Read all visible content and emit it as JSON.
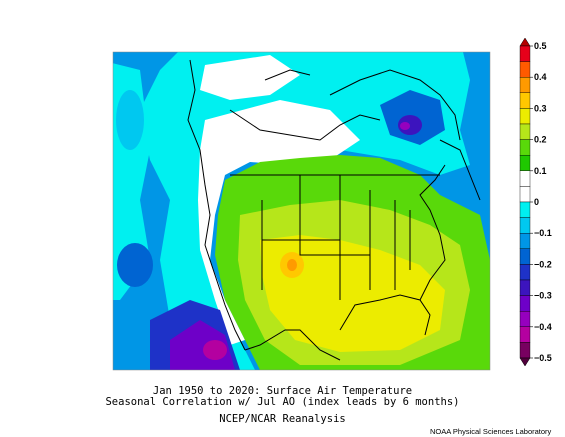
{
  "title_line1": "Jan 1950 to 2020: Surface Air Temperature",
  "title_line2": "Seasonal Correlation w/ Jul AO (index leads by 6 months)",
  "subtitle": "NCEP/NCAR Reanalysis",
  "credit": "NOAA Physical Sciences Laboratory",
  "colorbar": {
    "tick_labels": [
      "0.5",
      "0.4",
      "0.3",
      "0.2",
      "0.1",
      "0",
      "−0.1",
      "−0.2",
      "−0.3",
      "−0.4",
      "−0.5"
    ],
    "bins": [
      {
        "color": "#e6001a"
      },
      {
        "color": "#ff5a00"
      },
      {
        "color": "#ff9a00"
      },
      {
        "color": "#ffc800"
      },
      {
        "color": "#ecec00"
      },
      {
        "color": "#b6e61a"
      },
      {
        "color": "#59d90a"
      },
      {
        "color": "#1fc800"
      },
      {
        "color": "#ffffff"
      },
      {
        "color": "#ffffff"
      },
      {
        "color": "#00f0f0"
      },
      {
        "color": "#00c8f0"
      },
      {
        "color": "#0096e6"
      },
      {
        "color": "#0064d2"
      },
      {
        "color": "#1e32c8"
      },
      {
        "color": "#3c14be"
      },
      {
        "color": "#6e00c8"
      },
      {
        "color": "#9600be"
      },
      {
        "color": "#b400a0"
      },
      {
        "color": "#780060"
      }
    ],
    "top_arrow_color": "#b40000",
    "bottom_arrow_color": "#50003c"
  }
}
